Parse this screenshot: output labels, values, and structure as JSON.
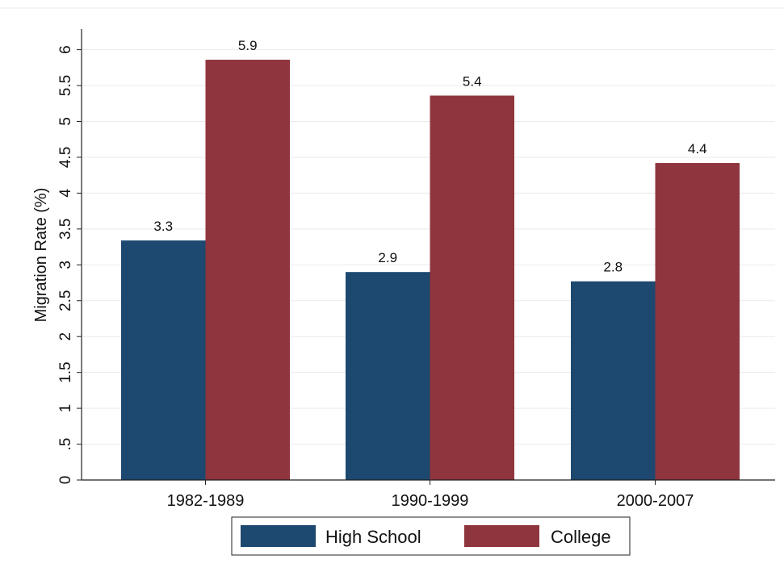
{
  "chart_data": {
    "type": "bar",
    "categories": [
      "1982-1989",
      "1990-1999",
      "2000-2007"
    ],
    "series": [
      {
        "name": "High School",
        "values": [
          3.34,
          2.9,
          2.77
        ],
        "labels": [
          "3.3",
          "2.9",
          "2.8"
        ],
        "color": "#1d4870"
      },
      {
        "name": "College",
        "values": [
          5.86,
          5.36,
          4.42
        ],
        "labels": [
          "5.9",
          "5.4",
          "4.4"
        ],
        "color": "#8f353d"
      }
    ],
    "ylabel": "Migration Rate (%)",
    "ylim": [
      0,
      6.3
    ],
    "yticks": [
      0,
      0.5,
      1,
      1.5,
      2,
      2.5,
      3,
      3.5,
      4,
      4.5,
      5,
      5.5,
      6
    ],
    "ytick_labels": [
      "0",
      ".5",
      "1",
      "1.5",
      "2",
      "2.5",
      "3",
      "3.5",
      "4",
      "4.5",
      "5",
      "5.5",
      "6"
    ],
    "grid": true,
    "legend_position": "bottom"
  }
}
